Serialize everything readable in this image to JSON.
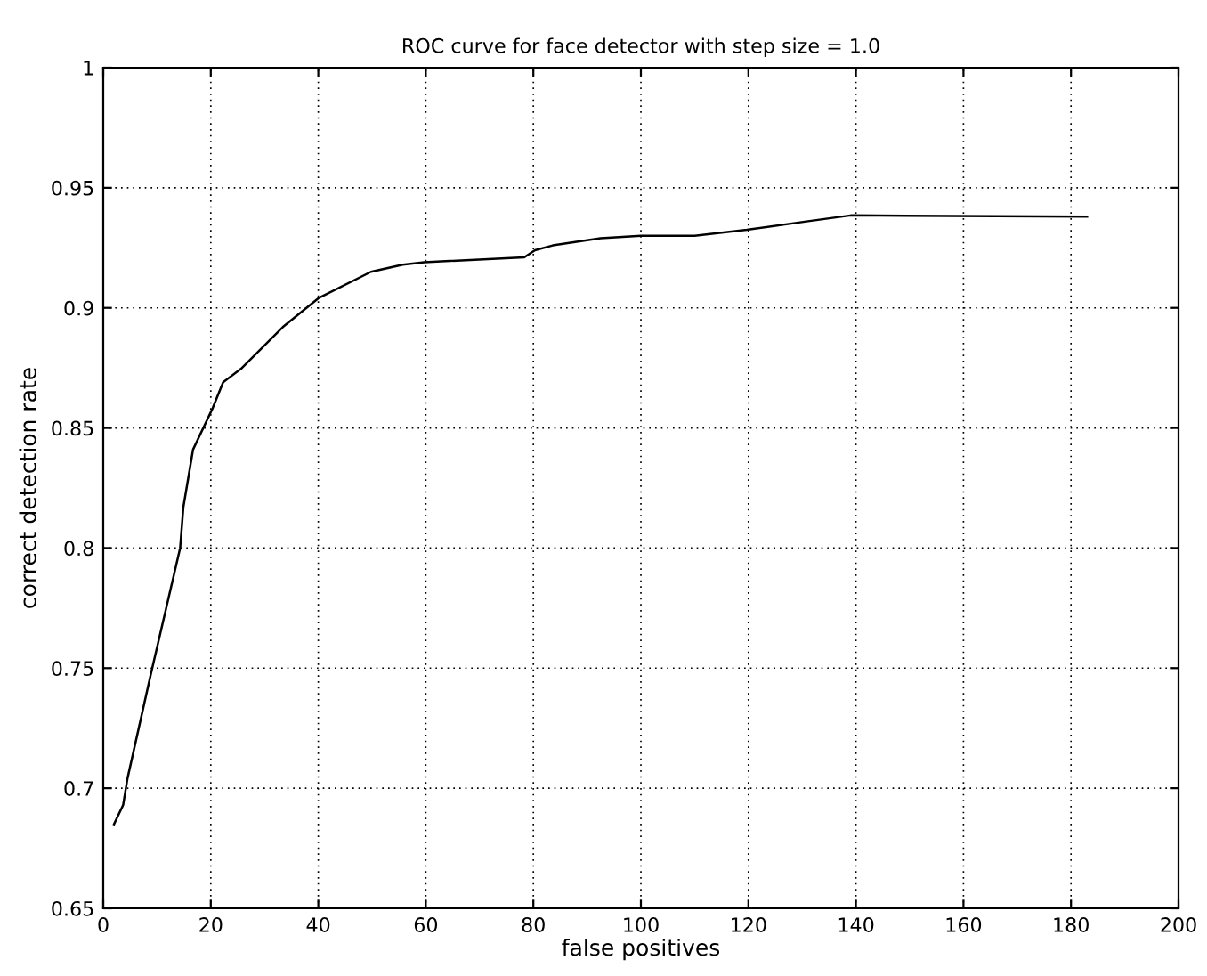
{
  "chart_data": {
    "type": "line",
    "title": "ROC curve for face detector with step size = 1.0",
    "xlabel": "false positives",
    "ylabel": "correct detection rate",
    "series": [
      {
        "color": "#000000",
        "x": [
          2,
          3.7,
          4.5,
          8.9,
          14.3,
          14.9,
          16.7,
          20.3,
          22.3,
          25.8,
          33.4,
          40,
          49.8,
          55.7,
          59.7,
          78.3,
          80.3,
          83.6,
          92.5,
          100,
          110,
          119.7,
          130.8,
          139,
          183
        ],
        "values": [
          0.685,
          0.693,
          0.704,
          0.748,
          0.8,
          0.817,
          0.841,
          0.858,
          0.869,
          0.875,
          0.892,
          0.904,
          0.915,
          0.918,
          0.919,
          0.921,
          0.924,
          0.926,
          0.929,
          0.93,
          0.93,
          0.9325,
          0.936,
          0.9385,
          0.938
        ]
      }
    ],
    "xlim": [
      0,
      200
    ],
    "xticks": [
      0,
      20,
      40,
      60,
      80,
      100,
      120,
      140,
      160,
      180,
      200
    ],
    "ylim": [
      0.65,
      1
    ],
    "yticks": [
      {
        "value": 0.65,
        "label": "0.65"
      },
      {
        "value": 0.7,
        "label": "0.7"
      },
      {
        "value": 0.75,
        "label": "0.75"
      },
      {
        "value": 0.8,
        "label": "0.8"
      },
      {
        "value": 0.85,
        "label": "0.85"
      },
      {
        "value": 0.9,
        "label": "0.9"
      },
      {
        "value": 0.95,
        "label": "0.95"
      },
      {
        "value": 1,
        "label": "1"
      }
    ],
    "grid": true,
    "line_style": "solid"
  }
}
